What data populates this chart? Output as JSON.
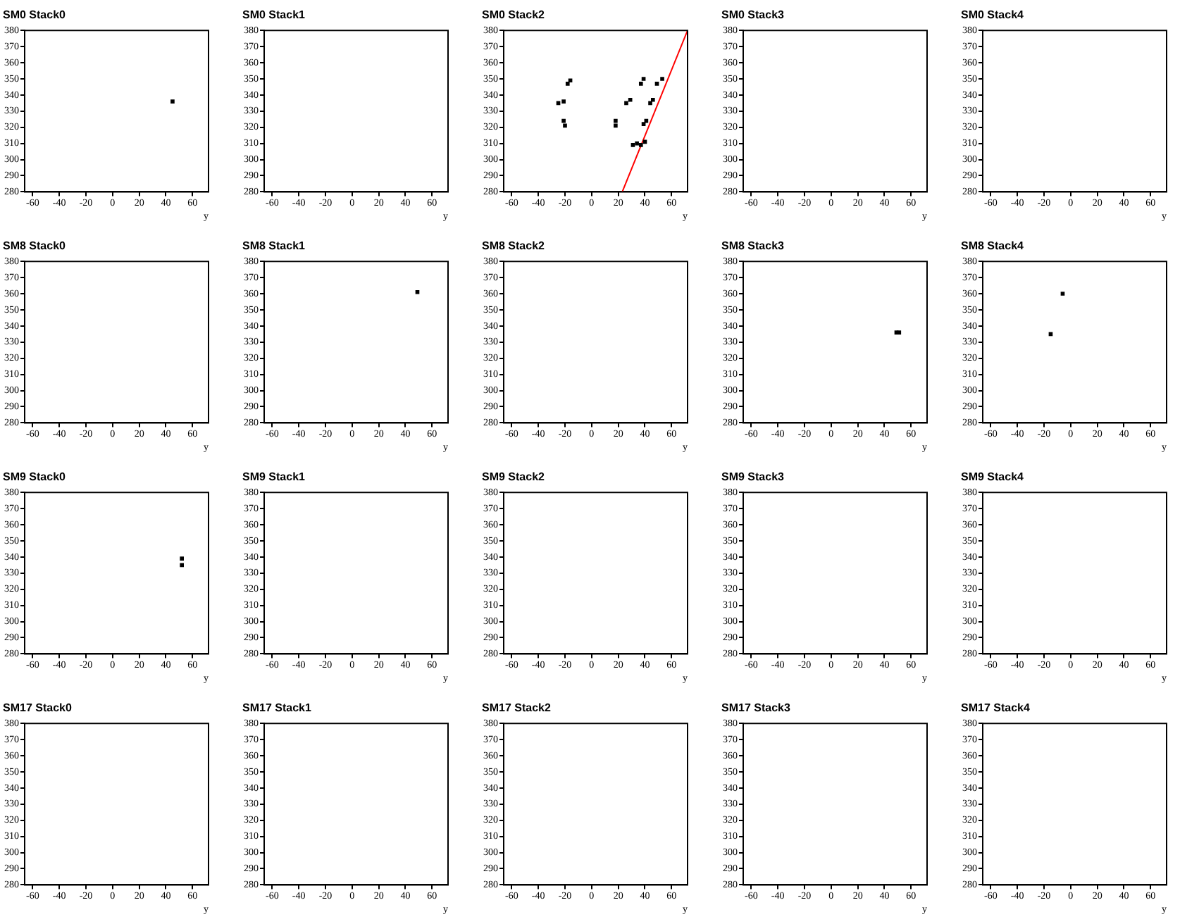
{
  "chart_data": [
    {
      "type": "scatter",
      "title": "SM0 Stack0",
      "xlabel": "y",
      "xlim": [
        -66,
        72
      ],
      "ylim": [
        280,
        380
      ],
      "xticks": [
        -60,
        -40,
        -20,
        0,
        20,
        40,
        60
      ],
      "yticks": [
        280,
        290,
        300,
        310,
        320,
        330,
        340,
        350,
        360,
        370,
        380
      ],
      "series": [
        {
          "color": "#000000",
          "marker": "square",
          "x": [
            45
          ],
          "values": [
            336
          ]
        }
      ]
    },
    {
      "type": "scatter",
      "title": "SM0 Stack1",
      "xlabel": "y",
      "xlim": [
        -66,
        72
      ],
      "ylim": [
        280,
        380
      ],
      "xticks": [
        -60,
        -40,
        -20,
        0,
        20,
        40,
        60
      ],
      "yticks": [
        280,
        290,
        300,
        310,
        320,
        330,
        340,
        350,
        360,
        370,
        380
      ]
    },
    {
      "type": "scatter",
      "title": "SM0 Stack2",
      "xlabel": "y",
      "xlim": [
        -66,
        72
      ],
      "ylim": [
        280,
        380
      ],
      "xticks": [
        -60,
        -40,
        -20,
        0,
        20,
        40,
        60
      ],
      "yticks": [
        280,
        290,
        300,
        310,
        320,
        330,
        340,
        350,
        360,
        370,
        380
      ],
      "series": [
        {
          "color": "#000000",
          "marker": "square",
          "x": [
            -18,
            -16,
            -25,
            -21,
            -21,
            -20,
            18,
            18,
            26,
            29,
            37,
            39,
            49,
            53,
            44,
            46,
            39,
            41,
            31,
            34,
            37,
            40
          ],
          "values": [
            347,
            349,
            335,
            336,
            324,
            321,
            324,
            321,
            335,
            337,
            347,
            350,
            347,
            350,
            335,
            337,
            322,
            324,
            309,
            310,
            309,
            311
          ]
        },
        {
          "type": "line",
          "color": "#ff0000",
          "x": [
            23,
            72
          ],
          "values": [
            280,
            380
          ]
        }
      ]
    },
    {
      "type": "scatter",
      "title": "SM0 Stack3",
      "xlabel": "y",
      "xlim": [
        -66,
        72
      ],
      "ylim": [
        280,
        380
      ],
      "xticks": [
        -60,
        -40,
        -20,
        0,
        20,
        40,
        60
      ],
      "yticks": [
        280,
        290,
        300,
        310,
        320,
        330,
        340,
        350,
        360,
        370,
        380
      ]
    },
    {
      "type": "scatter",
      "title": "SM0 Stack4",
      "xlabel": "y",
      "xlim": [
        -66,
        72
      ],
      "ylim": [
        280,
        380
      ],
      "xticks": [
        -60,
        -40,
        -20,
        0,
        20,
        40,
        60
      ],
      "yticks": [
        280,
        290,
        300,
        310,
        320,
        330,
        340,
        350,
        360,
        370,
        380
      ]
    },
    {
      "type": "scatter",
      "title": "SM8 Stack0",
      "xlabel": "y",
      "xlim": [
        -66,
        72
      ],
      "ylim": [
        280,
        380
      ],
      "xticks": [
        -60,
        -40,
        -20,
        0,
        20,
        40,
        60
      ],
      "yticks": [
        280,
        290,
        300,
        310,
        320,
        330,
        340,
        350,
        360,
        370,
        380
      ]
    },
    {
      "type": "scatter",
      "title": "SM8 Stack1",
      "xlabel": "y",
      "xlim": [
        -66,
        72
      ],
      "ylim": [
        280,
        380
      ],
      "xticks": [
        -60,
        -40,
        -20,
        0,
        20,
        40,
        60
      ],
      "yticks": [
        280,
        290,
        300,
        310,
        320,
        330,
        340,
        350,
        360,
        370,
        380
      ],
      "series": [
        {
          "color": "#000000",
          "marker": "square",
          "x": [
            49
          ],
          "values": [
            361
          ]
        }
      ]
    },
    {
      "type": "scatter",
      "title": "SM8 Stack2",
      "xlabel": "y",
      "xlim": [
        -66,
        72
      ],
      "ylim": [
        280,
        380
      ],
      "xticks": [
        -60,
        -40,
        -20,
        0,
        20,
        40,
        60
      ],
      "yticks": [
        280,
        290,
        300,
        310,
        320,
        330,
        340,
        350,
        360,
        370,
        380
      ]
    },
    {
      "type": "scatter",
      "title": "SM8 Stack3",
      "xlabel": "y",
      "xlim": [
        -66,
        72
      ],
      "ylim": [
        280,
        380
      ],
      "xticks": [
        -60,
        -40,
        -20,
        0,
        20,
        40,
        60
      ],
      "yticks": [
        280,
        290,
        300,
        310,
        320,
        330,
        340,
        350,
        360,
        370,
        380
      ],
      "series": [
        {
          "color": "#000000",
          "marker": "square",
          "x": [
            49,
            51
          ],
          "values": [
            336,
            336
          ]
        }
      ]
    },
    {
      "type": "scatter",
      "title": "SM8 Stack4",
      "xlabel": "y",
      "xlim": [
        -66,
        72
      ],
      "ylim": [
        280,
        380
      ],
      "xticks": [
        -60,
        -40,
        -20,
        0,
        20,
        40,
        60
      ],
      "yticks": [
        280,
        290,
        300,
        310,
        320,
        330,
        340,
        350,
        360,
        370,
        380
      ],
      "series": [
        {
          "color": "#000000",
          "marker": "square",
          "x": [
            -6,
            -15
          ],
          "values": [
            360,
            335
          ]
        }
      ]
    },
    {
      "type": "scatter",
      "title": "SM9 Stack0",
      "xlabel": "y",
      "xlim": [
        -66,
        72
      ],
      "ylim": [
        280,
        380
      ],
      "xticks": [
        -60,
        -40,
        -20,
        0,
        20,
        40,
        60
      ],
      "yticks": [
        280,
        290,
        300,
        310,
        320,
        330,
        340,
        350,
        360,
        370,
        380
      ],
      "series": [
        {
          "color": "#000000",
          "marker": "square",
          "x": [
            52,
            52
          ],
          "values": [
            335,
            339
          ]
        }
      ]
    },
    {
      "type": "scatter",
      "title": "SM9 Stack1",
      "xlabel": "y",
      "xlim": [
        -66,
        72
      ],
      "ylim": [
        280,
        380
      ],
      "xticks": [
        -60,
        -40,
        -20,
        0,
        20,
        40,
        60
      ],
      "yticks": [
        280,
        290,
        300,
        310,
        320,
        330,
        340,
        350,
        360,
        370,
        380
      ]
    },
    {
      "type": "scatter",
      "title": "SM9 Stack2",
      "xlabel": "y",
      "xlim": [
        -66,
        72
      ],
      "ylim": [
        280,
        380
      ],
      "xticks": [
        -60,
        -40,
        -20,
        0,
        20,
        40,
        60
      ],
      "yticks": [
        280,
        290,
        300,
        310,
        320,
        330,
        340,
        350,
        360,
        370,
        380
      ]
    },
    {
      "type": "scatter",
      "title": "SM9 Stack3",
      "xlabel": "y",
      "xlim": [
        -66,
        72
      ],
      "ylim": [
        280,
        380
      ],
      "xticks": [
        -60,
        -40,
        -20,
        0,
        20,
        40,
        60
      ],
      "yticks": [
        280,
        290,
        300,
        310,
        320,
        330,
        340,
        350,
        360,
        370,
        380
      ]
    },
    {
      "type": "scatter",
      "title": "SM9 Stack4",
      "xlabel": "y",
      "xlim": [
        -66,
        72
      ],
      "ylim": [
        280,
        380
      ],
      "xticks": [
        -60,
        -40,
        -20,
        0,
        20,
        40,
        60
      ],
      "yticks": [
        280,
        290,
        300,
        310,
        320,
        330,
        340,
        350,
        360,
        370,
        380
      ]
    },
    {
      "type": "scatter",
      "title": "SM17 Stack0",
      "xlabel": "y",
      "xlim": [
        -66,
        72
      ],
      "ylim": [
        280,
        380
      ],
      "xticks": [
        -60,
        -40,
        -20,
        0,
        20,
        40,
        60
      ],
      "yticks": [
        280,
        290,
        300,
        310,
        320,
        330,
        340,
        350,
        360,
        370,
        380
      ]
    },
    {
      "type": "scatter",
      "title": "SM17 Stack1",
      "xlabel": "y",
      "xlim": [
        -66,
        72
      ],
      "ylim": [
        280,
        380
      ],
      "xticks": [
        -60,
        -40,
        -20,
        0,
        20,
        40,
        60
      ],
      "yticks": [
        280,
        290,
        300,
        310,
        320,
        330,
        340,
        350,
        360,
        370,
        380
      ]
    },
    {
      "type": "scatter",
      "title": "SM17 Stack2",
      "xlabel": "y",
      "xlim": [
        -66,
        72
      ],
      "ylim": [
        280,
        380
      ],
      "xticks": [
        -60,
        -40,
        -20,
        0,
        20,
        40,
        60
      ],
      "yticks": [
        280,
        290,
        300,
        310,
        320,
        330,
        340,
        350,
        360,
        370,
        380
      ]
    },
    {
      "type": "scatter",
      "title": "SM17 Stack3",
      "xlabel": "y",
      "xlim": [
        -66,
        72
      ],
      "ylim": [
        280,
        380
      ],
      "xticks": [
        -60,
        -40,
        -20,
        0,
        20,
        40,
        60
      ],
      "yticks": [
        280,
        290,
        300,
        310,
        320,
        330,
        340,
        350,
        360,
        370,
        380
      ]
    },
    {
      "type": "scatter",
      "title": "SM17 Stack4",
      "xlabel": "y",
      "xlim": [
        -66,
        72
      ],
      "ylim": [
        280,
        380
      ],
      "xticks": [
        -60,
        -40,
        -20,
        0,
        20,
        40,
        60
      ],
      "yticks": [
        280,
        290,
        300,
        310,
        320,
        330,
        340,
        350,
        360,
        370,
        380
      ]
    }
  ]
}
